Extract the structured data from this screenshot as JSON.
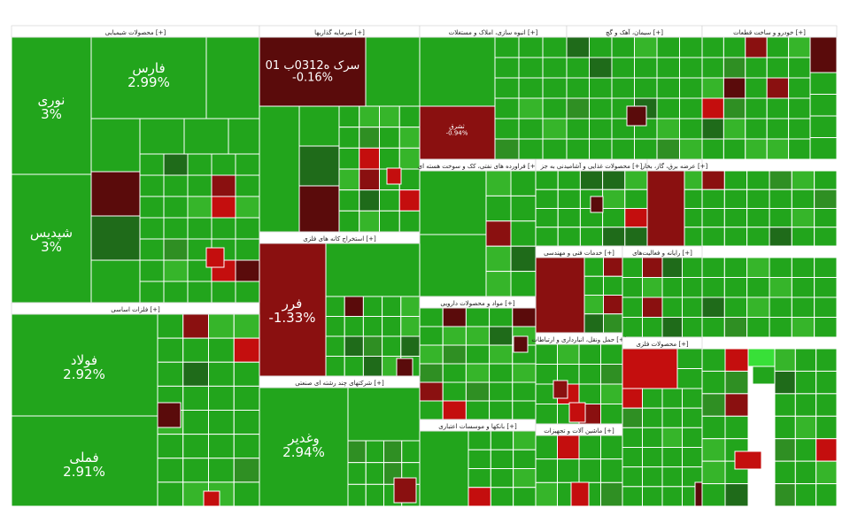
{
  "chart_data": {
    "type": "heatmap",
    "subtype": "treemap",
    "colors": {
      "strong_up": "#22a51c",
      "up": "#36b52a",
      "mid_up": "#2f8f23",
      "flat_up": "#1f6b1a",
      "down": "#c40e0e",
      "strong_down": "#8a1010",
      "deep_down": "#5a0b0b",
      "header_bg": "#ffffff",
      "header_text": "#1a1a1a",
      "border": "#ffffff",
      "highlight": "#38e038"
    },
    "sectors": [
      {
        "name": "محصولات شیمیایی [+]"
      },
      {
        "name": "فلزات اساسی [+]"
      },
      {
        "name": "سرمایه گذاریها [+]"
      },
      {
        "name": "استخراج کانه های فلزی [+]"
      },
      {
        "name": "شرکتهای چند رشته ای صنعتی [+]"
      },
      {
        "name": "انبوه سازی، املاک و مستغلات [+]"
      },
      {
        "name": "سیمان، آهک و گچ [+]"
      },
      {
        "name": "خودرو و ساخت قطعات [+]"
      },
      {
        "name": "فراورده های نفتی، کک و سوخت هسته ای [+]"
      },
      {
        "name": "محصولات غذایی و آشامیدنی به جز [+]"
      },
      {
        "name": "بانکها و موسسات اعتباری [+]"
      },
      {
        "name": "مواد و محصولات دارویی [+]"
      },
      {
        "name": "خدمات فنی و مهندسی [+]"
      },
      {
        "name": "عرضه برق، گاز، بخار [+]"
      },
      {
        "name": "رایانه و فعالیت‌های [+]"
      },
      {
        "name": "ماشین آلات و تجهیزات [+]"
      },
      {
        "name": "حمل ونقل، انبارداری و ارتباطات [+]"
      },
      {
        "name": "محصولات فلزی [+]"
      }
    ],
    "tiles": [
      {
        "label": "فارس",
        "value": "2.99%",
        "change": 2.99
      },
      {
        "label": "نوری",
        "value": "3%",
        "change": 3
      },
      {
        "label": "شپدیس",
        "value": "3%",
        "change": 3
      },
      {
        "label": "فولاد",
        "value": "2.92%",
        "change": 2.92
      },
      {
        "label": "فملی",
        "value": "2.91%",
        "change": 2.91
      },
      {
        "label": "سرک ه0312ب 01",
        "value": "-0.16%",
        "change": -0.16
      },
      {
        "label": "فرر",
        "value": "-1.33%",
        "change": -1.33
      },
      {
        "label": "وغدیر",
        "value": "2.94%",
        "change": 2.94
      },
      {
        "label": "ثشرق",
        "value": "-0.94%",
        "change": -0.94
      }
    ]
  }
}
